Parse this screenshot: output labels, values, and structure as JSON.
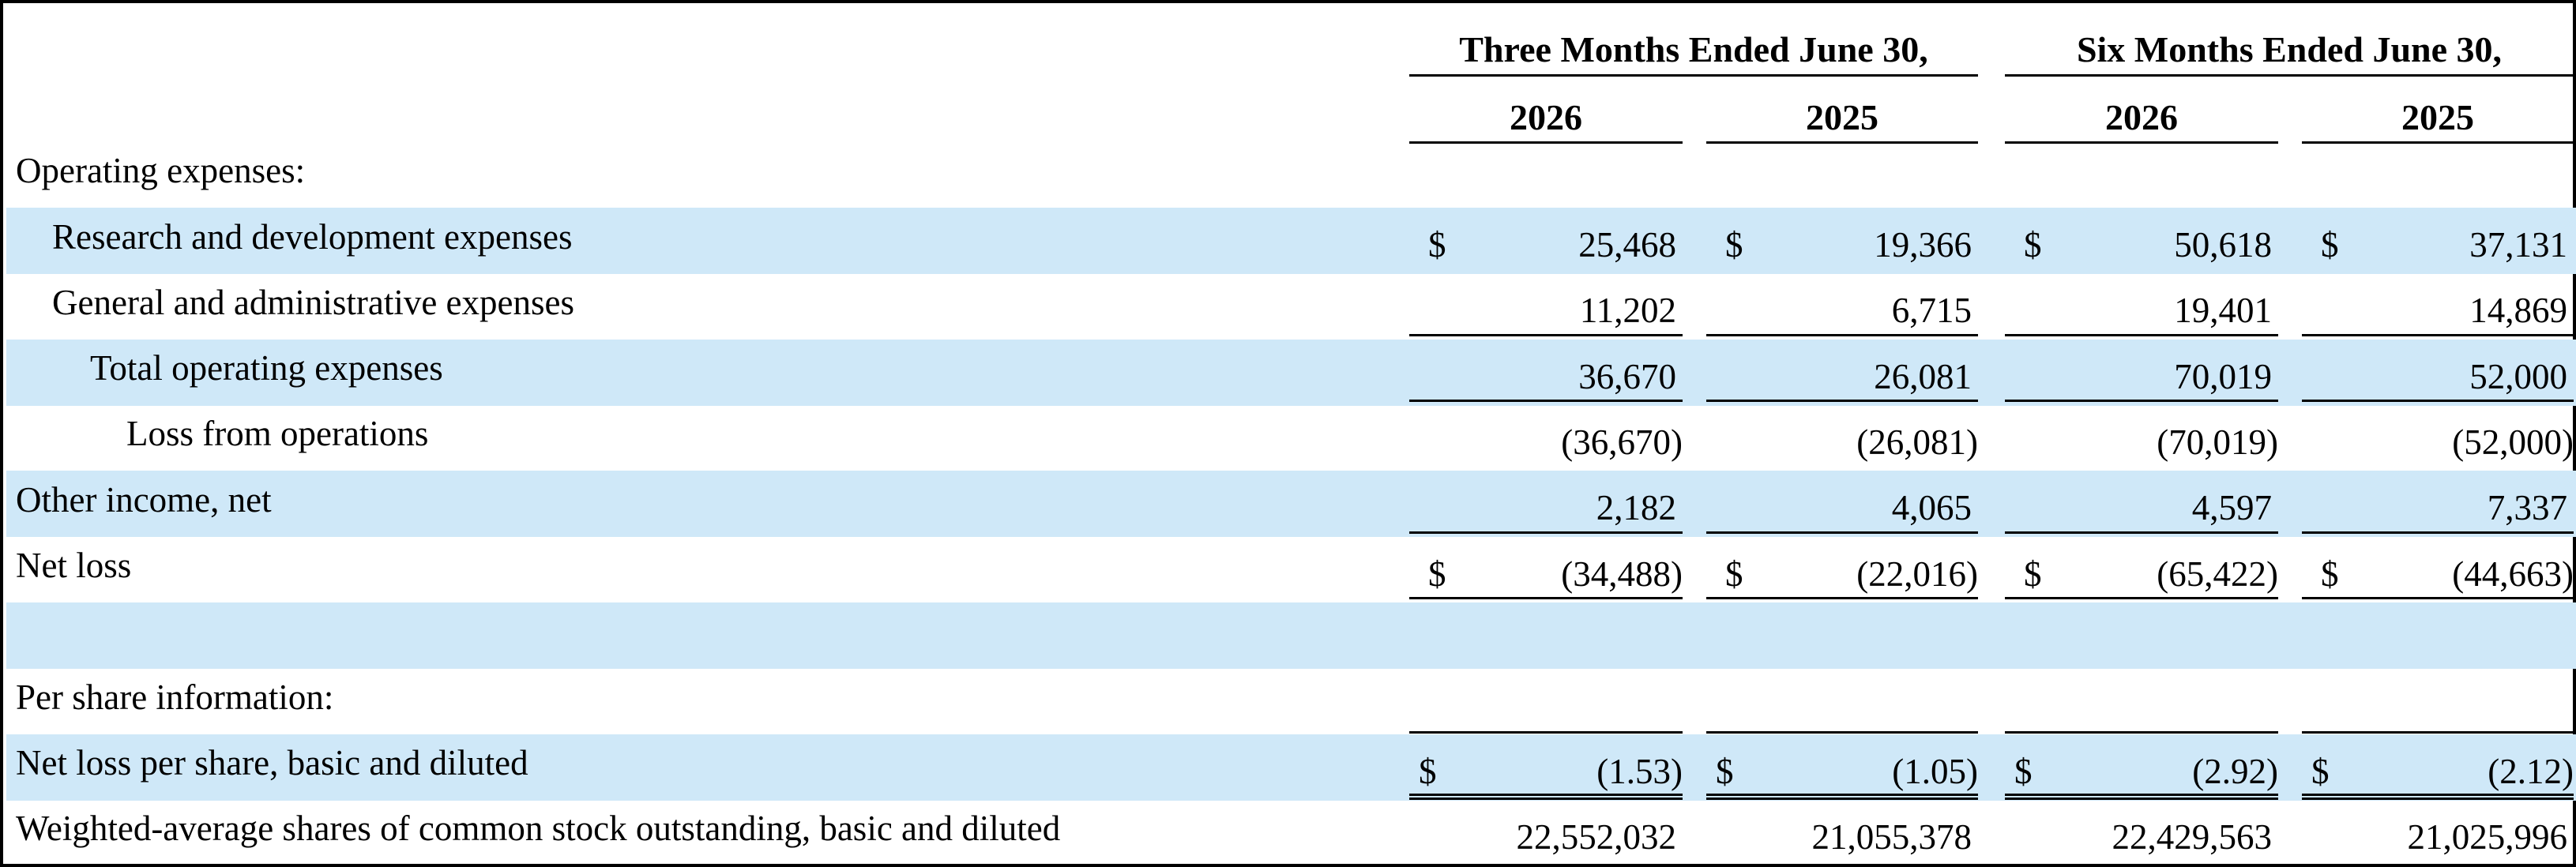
{
  "header": {
    "groups": [
      "Three Months Ended June 30,",
      "Six Months Ended June 30,"
    ],
    "years": [
      "2026",
      "2025",
      "2026",
      "2025"
    ]
  },
  "rows": [
    {
      "label": "Operating expenses:",
      "dollar": [],
      "values": []
    },
    {
      "label": "Research and development expenses",
      "dollar": [
        "$",
        "$",
        "$",
        "$"
      ],
      "values": [
        "25,468",
        "19,366",
        "50,618",
        "37,131"
      ]
    },
    {
      "label": "General and administrative expenses",
      "dollar": [],
      "values": [
        "11,202",
        "6,715",
        "19,401",
        "14,869"
      ]
    },
    {
      "label": "Total operating expenses",
      "dollar": [],
      "values": [
        "36,670",
        "26,081",
        "70,019",
        "52,000"
      ]
    },
    {
      "label": "Loss from operations",
      "dollar": [],
      "values": [
        "(36,670)",
        "(26,081)",
        "(70,019)",
        "(52,000)"
      ]
    },
    {
      "label": "Other income, net",
      "dollar": [],
      "values": [
        "2,182",
        "4,065",
        "4,597",
        "7,337"
      ]
    },
    {
      "label": "Net loss",
      "dollar": [
        "$",
        "$",
        "$",
        "$"
      ],
      "values": [
        "(34,488)",
        "(22,016)",
        "(65,422)",
        "(44,663)"
      ]
    },
    {
      "label": "",
      "dollar": [],
      "values": []
    },
    {
      "label": "Per share information:",
      "dollar": [],
      "values": []
    },
    {
      "label": "Net loss per share, basic and diluted",
      "dollar": [
        "$",
        "$",
        "$",
        "$"
      ],
      "values": [
        "(1.53)",
        "(1.05)",
        "(2.92)",
        "(2.12)"
      ]
    },
    {
      "label": "Weighted-average shares of  common stock outstanding, basic and diluted",
      "dollar": [],
      "values": [
        "22,552,032",
        "21,055,378",
        "22,429,563",
        "21,025,996"
      ]
    }
  ]
}
